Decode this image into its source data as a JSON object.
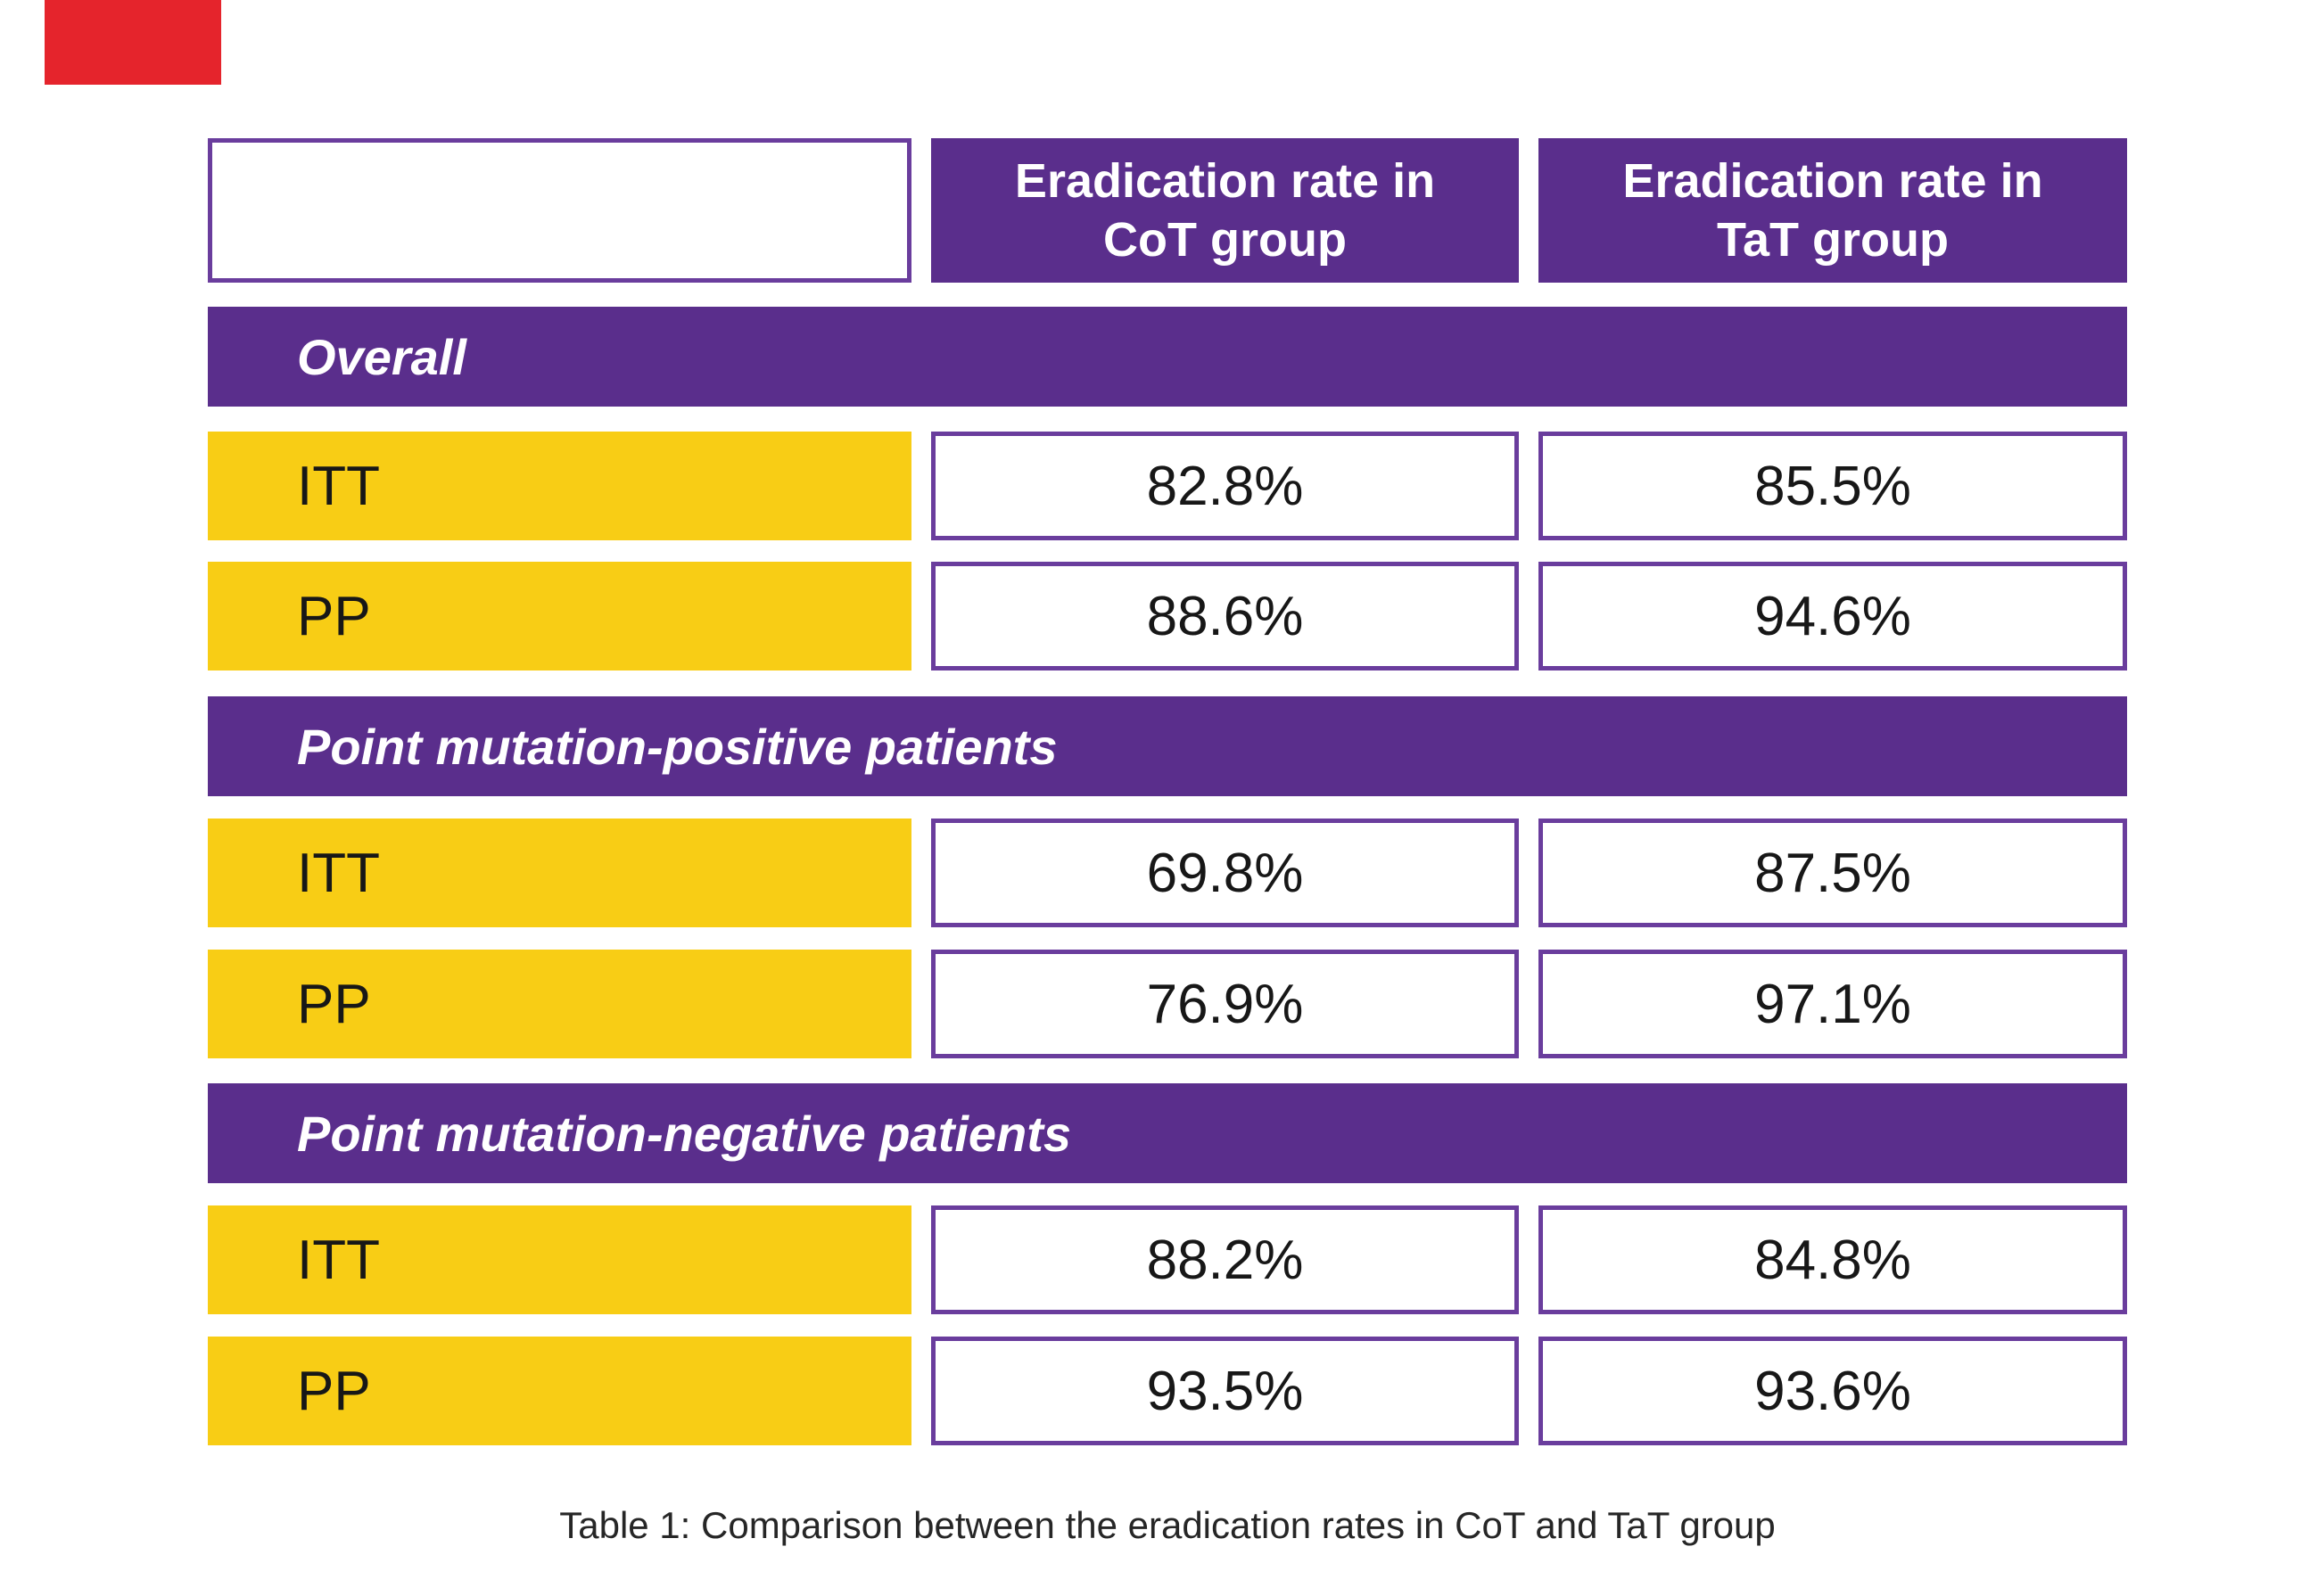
{
  "header": {
    "cot": {
      "line1": "Eradication rate in",
      "line2": "CoT group"
    },
    "tat": {
      "line1": "Eradication rate in",
      "line2": "TaT group"
    }
  },
  "chart_data": {
    "type": "table",
    "title": "Table 1: Comparison between the eradication rates in CoT and TaT group",
    "columns": [
      "",
      "Eradication rate in CoT group",
      "Eradication rate in TaT group"
    ],
    "sections": [
      {
        "section": "Overall",
        "rows": [
          [
            "ITT",
            "82.8%",
            "85.5%"
          ],
          [
            "PP",
            "88.6%",
            "94.6%"
          ]
        ]
      },
      {
        "section": "Point mutation-positive patients",
        "rows": [
          [
            "ITT",
            "69.8%",
            "87.5%"
          ],
          [
            "PP",
            "76.9%",
            "97.1%"
          ]
        ]
      },
      {
        "section": "Point mutation-negative patients",
        "rows": [
          [
            "ITT",
            "88.2%",
            "84.8%"
          ],
          [
            "PP",
            "93.5%",
            "93.6%"
          ]
        ]
      }
    ]
  },
  "colors": {
    "purple_fill": "#5a2e8c",
    "purple_border": "#6a3d9d",
    "yellow": "#f8cd15",
    "red_corner_mark": "#e5242c",
    "value_text": "#171717",
    "header_text": "#ffffff",
    "caption_text": "#262626",
    "background": "#ffffff"
  }
}
